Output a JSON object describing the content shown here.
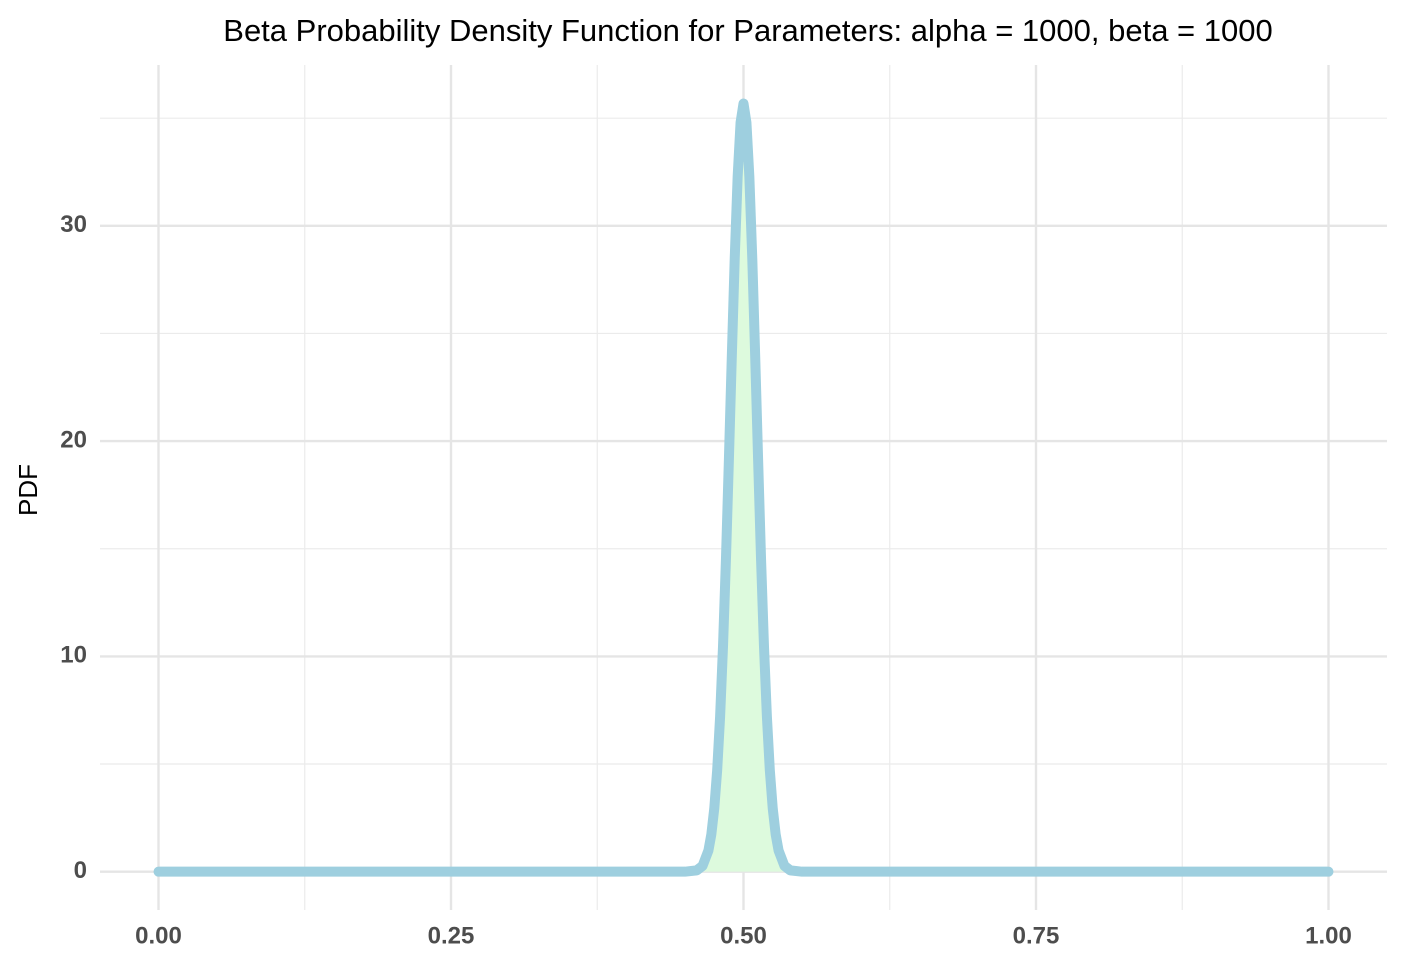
{
  "chart_data": {
    "type": "area",
    "title": "Beta Probability Density Function for Parameters: alpha = 1000, beta = 1000",
    "y_label": "PDF",
    "x": [
      0,
      0.25,
      0.45,
      0.46,
      0.465,
      0.47,
      0.4725,
      0.475,
      0.4775,
      0.48,
      0.4825,
      0.485,
      0.4875,
      0.49,
      0.4925,
      0.495,
      0.4975,
      0.5,
      0.5025,
      0.505,
      0.5075,
      0.51,
      0.5125,
      0.515,
      0.5175,
      0.52,
      0.5225,
      0.525,
      0.5275,
      0.53,
      0.535,
      0.54,
      0.55,
      0.75,
      1
    ],
    "values": [
      0,
      0,
      0,
      0.06,
      0.27,
      0.98,
      1.73,
      2.93,
      4.71,
      7.2,
      10.48,
      14.51,
      19.1,
      23.92,
      28.49,
      32.28,
      34.8,
      35.68,
      34.8,
      32.28,
      28.49,
      23.92,
      19.1,
      14.51,
      10.48,
      7.2,
      4.71,
      2.93,
      1.73,
      0.98,
      0.27,
      0.06,
      0,
      0,
      0
    ],
    "line_color": "#9ecfdf",
    "fill_color": "#ddfadd",
    "xlim": [
      -0.05,
      1.05
    ],
    "xticks": [
      {
        "value": 0,
        "label": "0.00"
      },
      {
        "value": 0.25,
        "label": "0.25"
      },
      {
        "value": 0.5,
        "label": "0.50"
      },
      {
        "value": 0.75,
        "label": "0.75"
      },
      {
        "value": 1,
        "label": "1.00"
      }
    ],
    "minor_xticks": [
      0.125,
      0.375,
      0.625,
      0.875
    ],
    "ylim": [
      -1.78,
      37.47
    ],
    "yticks": [
      0,
      10,
      20,
      30
    ],
    "minor_yticks": [
      5,
      15,
      25,
      35
    ],
    "grid": true
  }
}
